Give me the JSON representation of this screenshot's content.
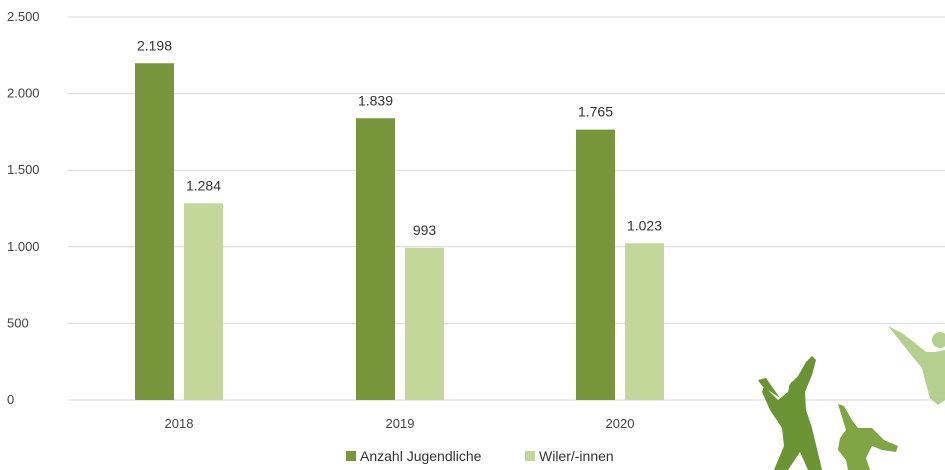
{
  "chart_data": {
    "type": "bar",
    "categories": [
      "2018",
      "2019",
      "2020"
    ],
    "series": [
      {
        "name": "Anzahl Jugendliche",
        "values": [
          2198,
          1839,
          1765
        ],
        "labels": [
          "2.198",
          "1.839",
          "1.765"
        ],
        "color": "#77953A"
      },
      {
        "name": "Wiler/-innen",
        "values": [
          1284,
          993,
          1023
        ],
        "labels": [
          "1.284",
          "993",
          "1.023"
        ],
        "color": "#C4D79B"
      }
    ],
    "ylim": [
      0,
      2500
    ],
    "yticks": [
      0,
      500,
      1000,
      1500,
      2000,
      2500
    ],
    "ytick_labels": [
      "0",
      "500",
      "1.000",
      "1.500",
      "2.000",
      "2.500"
    ],
    "grid": true,
    "legend_position": "bottom",
    "title": "",
    "xlabel": "",
    "ylabel": ""
  },
  "decoration": {
    "icon": "jumping-people-silhouettes",
    "colors": {
      "dark": "#6A9434",
      "mid": "#7FA544",
      "light": "#A8C77C"
    }
  }
}
